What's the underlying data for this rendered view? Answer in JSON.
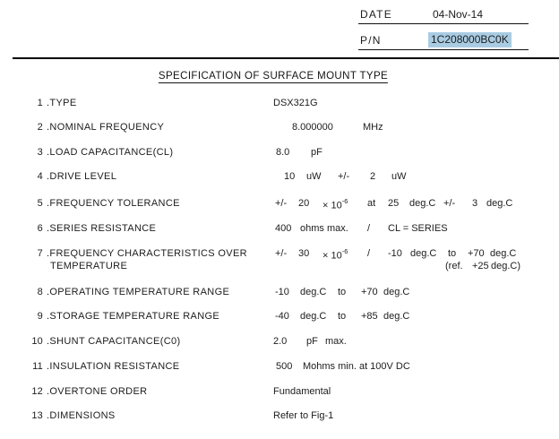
{
  "header": {
    "date_label": "DATE",
    "date_value": "04-Nov-14",
    "pn_label": "P/N",
    "pn_value": "1C208000BC0K",
    "pn_highlight_color": "#a9cce3"
  },
  "title": "SPECIFICATION OF SURFACE MOUNT TYPE",
  "spec": {
    "rows": [
      {
        "num": "1",
        "label": ".TYPE",
        "segments": [
          {
            "text": "DSX321G"
          }
        ]
      },
      {
        "num": "2",
        "label": ".NOMINAL FREQUENCY",
        "segments": [
          {
            "text": "8.000000"
          },
          {
            "text": "MHz"
          }
        ]
      },
      {
        "num": "3",
        "label": ".LOAD CAPACITANCE(CL)",
        "segments": [
          {
            "text": "8.0"
          },
          {
            "text": "pF"
          }
        ]
      },
      {
        "num": "4",
        "label": ".DRIVE LEVEL",
        "segments": [
          {
            "text": "10"
          },
          {
            "text": "uW"
          },
          {
            "text": "+/-"
          },
          {
            "text": "2"
          },
          {
            "text": "uW"
          }
        ]
      },
      {
        "num": "5",
        "label": ".FREQUENCY TOLERANCE",
        "segments": [
          {
            "text": "+/-"
          },
          {
            "text": "20"
          },
          {
            "text": "× 10",
            "sup": "-6"
          },
          {
            "text": "at"
          },
          {
            "text": "25"
          },
          {
            "text": "deg.C"
          },
          {
            "text": "+/-"
          },
          {
            "text": "3"
          },
          {
            "text": "deg.C"
          }
        ]
      },
      {
        "num": "6",
        "label": ".SERIES RESISTANCE",
        "segments": [
          {
            "text": "400"
          },
          {
            "text": "ohms max."
          },
          {
            "text": "/"
          },
          {
            "text": "CL = SERIES"
          }
        ]
      },
      {
        "num": "7",
        "label": ".FREQUENCY CHARACTERISTICS OVER",
        "label2": "TEMPERATURE",
        "segments": [
          {
            "text": "+/-"
          },
          {
            "text": "30"
          },
          {
            "text": "× 10",
            "sup": "-6"
          },
          {
            "text": "/"
          },
          {
            "text": "-10"
          },
          {
            "text": "deg.C"
          },
          {
            "text": "to"
          },
          {
            "text": "+70"
          },
          {
            "text": "deg.C"
          }
        ],
        "segments2": [
          {
            "text": "(ref."
          },
          {
            "text": "+25"
          },
          {
            "text": "deg.C)"
          }
        ]
      },
      {
        "num": "8",
        "label": ".OPERATING TEMPERATURE RANGE",
        "segments": [
          {
            "text": "-10"
          },
          {
            "text": "deg.C"
          },
          {
            "text": "to"
          },
          {
            "text": "+70"
          },
          {
            "text": "deg.C"
          }
        ]
      },
      {
        "num": "9",
        "label": ".STORAGE TEMPERATURE RANGE",
        "segments": [
          {
            "text": "-40"
          },
          {
            "text": "deg.C"
          },
          {
            "text": "to"
          },
          {
            "text": "+85"
          },
          {
            "text": "deg.C"
          }
        ]
      },
      {
        "num": "10",
        "label": ".SHUNT CAPACITANCE(C0)",
        "segments": [
          {
            "text": "2.0"
          },
          {
            "text": "pF"
          },
          {
            "text": "max."
          }
        ]
      },
      {
        "num": "11",
        "label": ".INSULATION RESISTANCE",
        "segments": [
          {
            "text": "500"
          },
          {
            "text": "Mohms min. at 100V DC"
          }
        ]
      },
      {
        "num": "12",
        "label": ".OVERTONE ORDER",
        "segments": [
          {
            "text": "Fundamental"
          }
        ]
      },
      {
        "num": "13",
        "label": ".DIMENSIONS",
        "segments": [
          {
            "text": "Refer to Fig-1"
          }
        ]
      }
    ]
  }
}
